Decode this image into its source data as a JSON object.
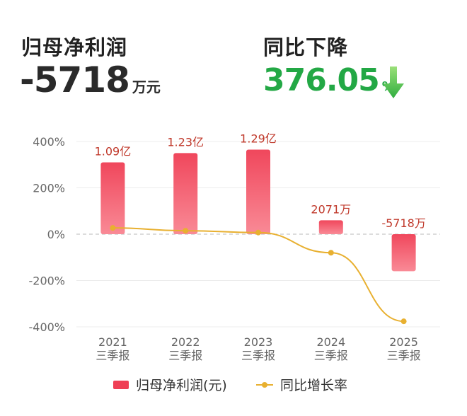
{
  "header": {
    "profit_label": "归母净利润",
    "profit_value": "-5718",
    "profit_unit": "万元",
    "change_label": "同比下降",
    "change_value": "376.05",
    "change_unit": "%",
    "change_icon": "down-arrow-icon",
    "change_color": "#23a845"
  },
  "chart_data": {
    "type": "bar",
    "categories": [
      "2021\n三季报",
      "2022\n三季报",
      "2023\n三季报",
      "2024\n三季报",
      "2025\n三季报"
    ],
    "category_years": [
      "2021",
      "2022",
      "2023",
      "2024",
      "2025"
    ],
    "category_period": "三季报",
    "y_ticks": [
      "400%",
      "200%",
      "0%",
      "-200%",
      "-400%"
    ],
    "ylim": [
      -400,
      400
    ],
    "grid": true,
    "series": [
      {
        "name": "归母净利润(元)",
        "kind": "bar",
        "color": "#ef3f55",
        "values": [
          310,
          350,
          365,
          60,
          -160
        ],
        "labels": [
          "1.09亿",
          "1.23亿",
          "1.29亿",
          "2071万",
          "-5718万"
        ]
      },
      {
        "name": "同比增长率",
        "kind": "line",
        "color": "#e8b030",
        "values": [
          27,
          15,
          7,
          -80,
          -376.05
        ]
      }
    ],
    "legend_position": "bottom"
  }
}
